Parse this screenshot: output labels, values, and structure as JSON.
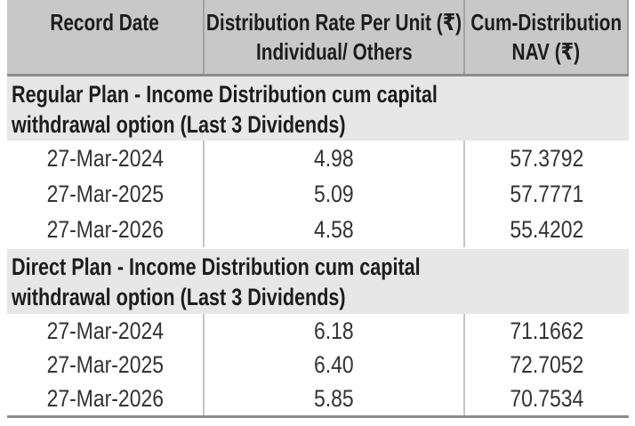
{
  "header": {
    "col1": "Record Date",
    "col2_line1": "Distribution Rate Per Unit (₹)",
    "col2_line2": "Individual/ Others",
    "col3_line1": "Cum-Distribution",
    "col3_line2": "NAV (₹)"
  },
  "sections": [
    {
      "title_line1": "Regular Plan - Income Distribution cum capital",
      "title_line2": "withdrawal option (Last 3 Dividends)",
      "rows": [
        {
          "date": "27-Mar-2024",
          "rate": "4.98",
          "nav": "57.3792"
        },
        {
          "date": "27-Mar-2025",
          "rate": "5.09",
          "nav": "57.7771"
        },
        {
          "date": "27-Mar-2026",
          "rate": "4.58",
          "nav": "55.4202"
        }
      ]
    },
    {
      "title_line1": "Direct Plan - Income Distribution cum capital",
      "title_line2": "withdrawal option (Last 3 Dividends)",
      "rows": [
        {
          "date": "27-Mar-2024",
          "rate": "6.18",
          "nav": "71.1662"
        },
        {
          "date": "27-Mar-2025",
          "rate": "6.40",
          "nav": "72.7052"
        },
        {
          "date": "27-Mar-2026",
          "rate": "5.85",
          "nav": "70.7534"
        }
      ]
    }
  ],
  "colors": {
    "header_bg": "#c8c8c8",
    "section_bg": "#e7e7e7",
    "border_dark": "#8d8d8d",
    "divider_header": "#a2a2a2",
    "divider_data": "#c4c4c4",
    "heading_text": "#1c1c1c",
    "data_text": "#333333"
  }
}
